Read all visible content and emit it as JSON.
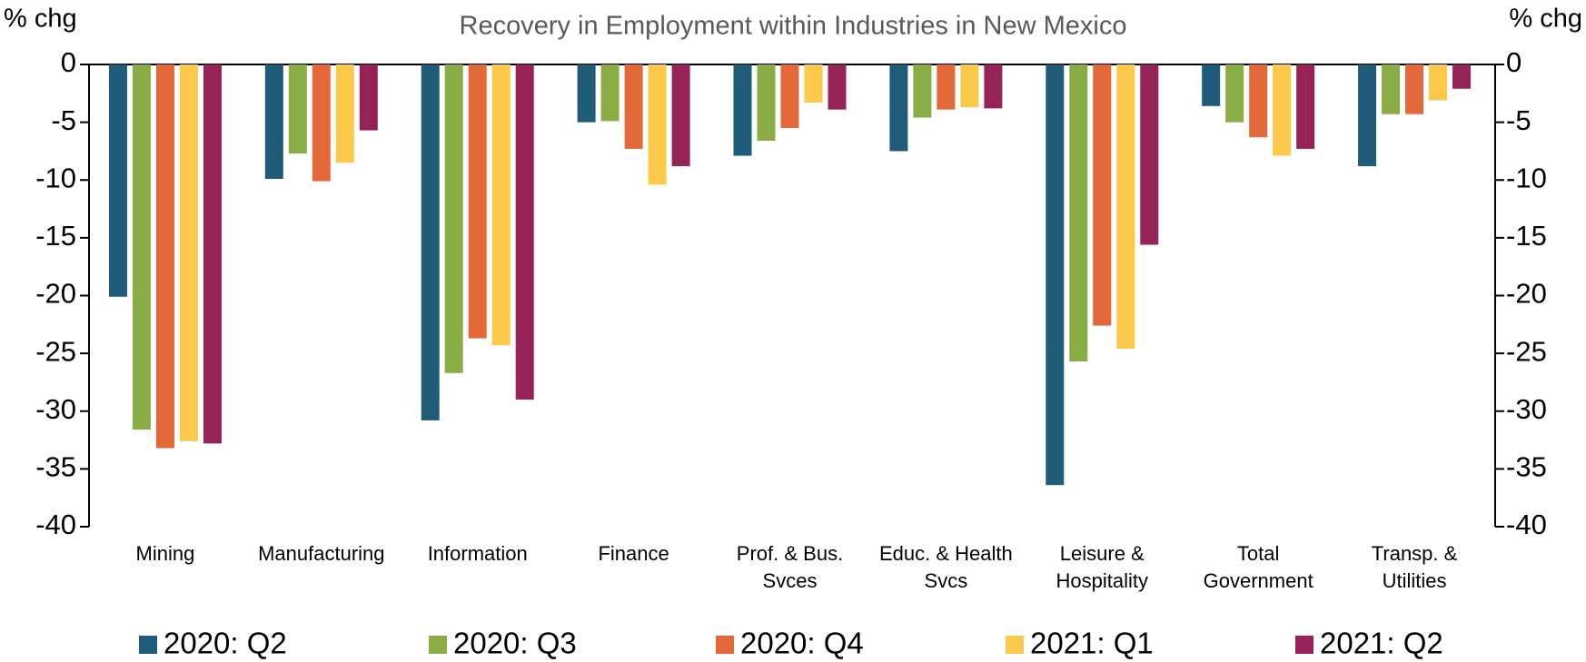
{
  "chart_data": {
    "type": "bar",
    "title": "Recovery in Employment within Industries in New Mexico",
    "y_label": "% chg",
    "y2_label": "% chg",
    "categories": [
      "Mining",
      "Manufacturing",
      "Information",
      "Finance",
      "Prof. & Bus.\nSvces",
      "Educ. & Health\nSvcs",
      "Leisure &\nHospitality",
      "Total\nGovernment",
      "Transp. &\nUtilities"
    ],
    "series": [
      {
        "name": "2020: Q2",
        "color": "#1f5c7a",
        "values": [
          -20.1,
          -9.9,
          -30.8,
          -5.0,
          -7.9,
          -7.5,
          -36.4,
          -3.6,
          -8.8
        ]
      },
      {
        "name": "2020: Q3",
        "color": "#8aac45",
        "values": [
          -31.6,
          -7.7,
          -26.7,
          -4.9,
          -6.6,
          -4.6,
          -25.7,
          -5.0,
          -4.3
        ]
      },
      {
        "name": "2020: Q4",
        "color": "#e4693a",
        "values": [
          -33.2,
          -10.1,
          -23.7,
          -7.3,
          -5.5,
          -3.9,
          -22.6,
          -6.3,
          -4.3
        ]
      },
      {
        "name": "2021: Q1",
        "color": "#fcc94a",
        "values": [
          -32.6,
          -8.5,
          -24.3,
          -10.4,
          -3.3,
          -3.7,
          -24.6,
          -7.9,
          -3.1
        ]
      },
      {
        "name": "2021: Q2",
        "color": "#962357",
        "values": [
          -32.8,
          -5.7,
          -29.0,
          -8.8,
          -3.9,
          -3.8,
          -15.6,
          -7.3,
          -2.1
        ]
      }
    ],
    "ylim": [
      -40,
      0
    ],
    "yticks": [
      0,
      -5,
      -10,
      -15,
      -20,
      -25,
      -30,
      -35,
      -40
    ],
    "y2lim": [
      -40,
      0
    ],
    "y2ticks": [
      0,
      -5,
      -10,
      -15,
      -20,
      -25,
      -30,
      -35,
      -40
    ],
    "grid": false,
    "legend": "bottom"
  }
}
